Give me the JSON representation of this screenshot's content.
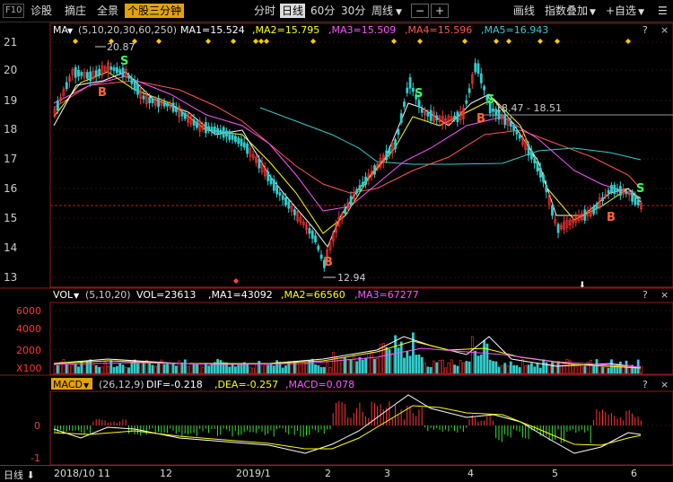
{
  "toolbar": {
    "f10": "F10",
    "zhengu": "诊股",
    "zhaiya": "摘庄",
    "quanjing": "全景",
    "active_tab": "个股三分钟",
    "fenshi": "分时",
    "rixian": "日线",
    "p60": "60分",
    "p30": "30分",
    "zhouxian": "周线",
    "minus": "−",
    "plus": "+",
    "huaxian": "画线",
    "zhishu": "指数叠加",
    "zixuan": "+自选",
    "menu": "☰"
  },
  "ma_panel": {
    "label": "MA",
    "params": "(5,10,20,30,60,250)",
    "ma1": "MA1=15.524",
    "ma2": ",MA2=15.795",
    "ma3": ",MA3=15.509",
    "ma4": ",MA4=15.596",
    "ma5": ",MA5=16.943",
    "high_label": "20.87",
    "low_label": "12.94",
    "range_label": "18.47 - 18.51",
    "y_ticks": [
      "21",
      "20",
      "19",
      "18",
      "17",
      "16",
      "15",
      "14",
      "13"
    ],
    "colors": {
      "ma1": "#ffffff",
      "ma2": "#ffff00",
      "ma3": "#ff55ff",
      "ma4": "#ff5555",
      "ma5": "#33cccc"
    }
  },
  "vol_panel": {
    "label": "VOL",
    "params": "(5,10,20)",
    "vol": "VOL=23613",
    "ma1": ",MA1=43092",
    "ma2": ",MA2=66560",
    "ma3": ",MA3=67277",
    "y_ticks": [
      "6000",
      "4000",
      "2000",
      "X100"
    ]
  },
  "macd_panel": {
    "label": "MACD",
    "params": "(26,12,9)",
    "dif": "DIF=-0.218",
    "dea": ",DEA=-0.257",
    "macd": ",MACD=0.078",
    "y_ticks": [
      "0",
      "-1"
    ]
  },
  "bottom": {
    "period": "日线",
    "dates": [
      "2018/10",
      "11",
      "12",
      "2019/1",
      "2",
      "3",
      "4",
      "5",
      "6"
    ]
  },
  "signals": {
    "buy": "B",
    "sell": "S"
  },
  "question": "?",
  "close": "×"
}
